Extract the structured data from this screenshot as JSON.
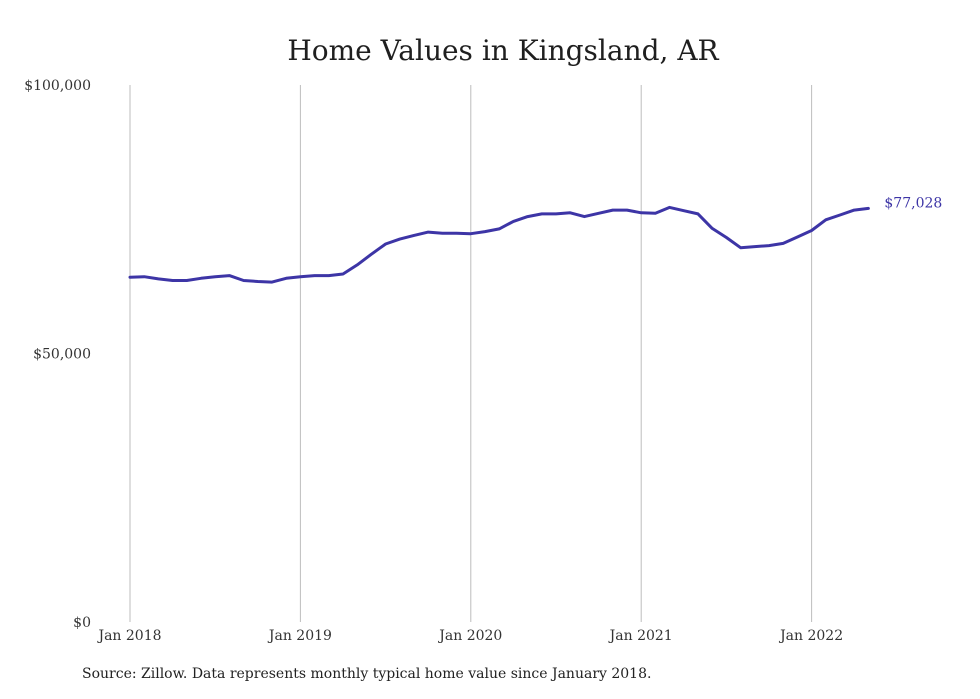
{
  "chart_data": {
    "type": "line",
    "title": "Home Values in Kingsland, AR",
    "xlabel": "",
    "ylabel": "",
    "x_start": "2018-01",
    "x_ticks": [
      "Jan 2018",
      "Jan 2019",
      "Jan 2020",
      "Jan 2021",
      "Jan 2022"
    ],
    "y_ticks": [
      "$0",
      "$50,000",
      "$100,000"
    ],
    "ylim": [
      0,
      100000
    ],
    "grid": "vertical",
    "series": [
      {
        "name": "",
        "color": "#3d35a6",
        "x": [
          "2018-01",
          "2018-02",
          "2018-03",
          "2018-04",
          "2018-05",
          "2018-06",
          "2018-07",
          "2018-08",
          "2018-09",
          "2018-10",
          "2018-11",
          "2018-12",
          "2019-01",
          "2019-02",
          "2019-03",
          "2019-04",
          "2019-05",
          "2019-06",
          "2019-07",
          "2019-08",
          "2019-09",
          "2019-10",
          "2019-11",
          "2019-12",
          "2020-01",
          "2020-02",
          "2020-03",
          "2020-04",
          "2020-05",
          "2020-06",
          "2020-07",
          "2020-08",
          "2020-09",
          "2020-10",
          "2020-11",
          "2020-12",
          "2021-01",
          "2021-02",
          "2021-03",
          "2021-04",
          "2021-05",
          "2021-06",
          "2021-07",
          "2021-08",
          "2021-09",
          "2021-10",
          "2021-11",
          "2021-12",
          "2022-01",
          "2022-02",
          "2022-03",
          "2022-04",
          "2022-05"
        ],
        "values": [
          64200,
          64300,
          63900,
          63600,
          63600,
          64000,
          64300,
          64500,
          63600,
          63400,
          63300,
          64000,
          64300,
          64500,
          64500,
          64800,
          66500,
          68500,
          70400,
          71300,
          72000,
          72600,
          72400,
          72400,
          72300,
          72700,
          73200,
          74600,
          75500,
          76000,
          76000,
          76200,
          75500,
          76100,
          76700,
          76700,
          76200,
          76100,
          77200,
          76600,
          76000,
          73300,
          71600,
          69700,
          69900,
          70100,
          70500,
          71700,
          72900,
          74900,
          75800,
          76700,
          77028
        ]
      }
    ],
    "end_label": "$77,028"
  },
  "footer": {
    "source": "Source: Zillow. Data represents monthly typical home value since January 2018."
  }
}
